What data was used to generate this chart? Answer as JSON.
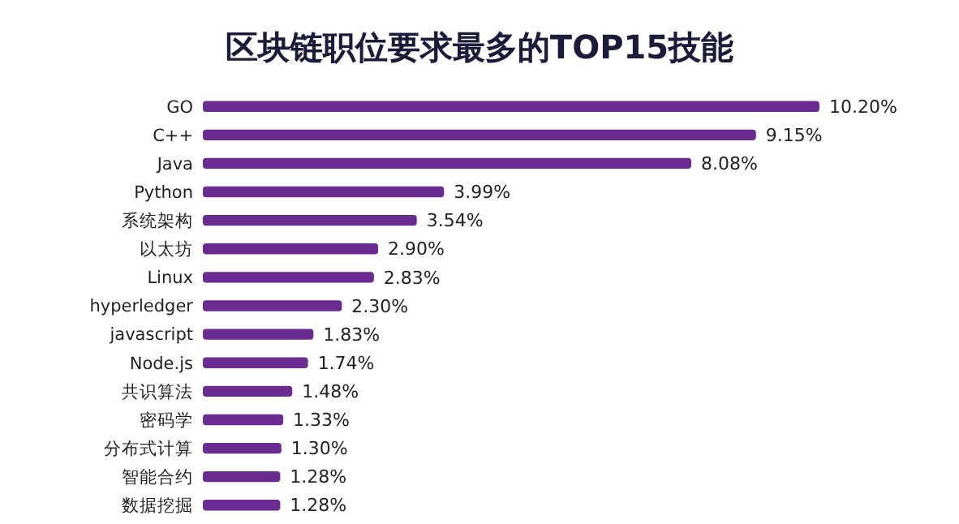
{
  "chart_data": {
    "type": "bar",
    "orientation": "horizontal",
    "title": "区块链职位要求最多的TOP15技能",
    "categories": [
      "GO",
      "C++",
      "Java",
      "Python",
      "系统架构",
      "以太坊",
      "Linux",
      "hyperledger",
      "javascript",
      "Node.js",
      "共识算法",
      "密码学",
      "分布式计算",
      "智能合约",
      "数据挖掘"
    ],
    "values": [
      10.2,
      9.15,
      8.08,
      3.99,
      3.54,
      2.9,
      2.83,
      2.3,
      1.83,
      1.74,
      1.48,
      1.33,
      1.3,
      1.28,
      1.28
    ],
    "value_labels": [
      "10.20%",
      "9.15%",
      "8.08%",
      "3.99%",
      "3.54%",
      "2.90%",
      "2.83%",
      "2.30%",
      "1.83%",
      "1.74%",
      "1.48%",
      "1.33%",
      "1.30%",
      "1.28%",
      "1.28%"
    ],
    "color": "#6b2c92"
  }
}
